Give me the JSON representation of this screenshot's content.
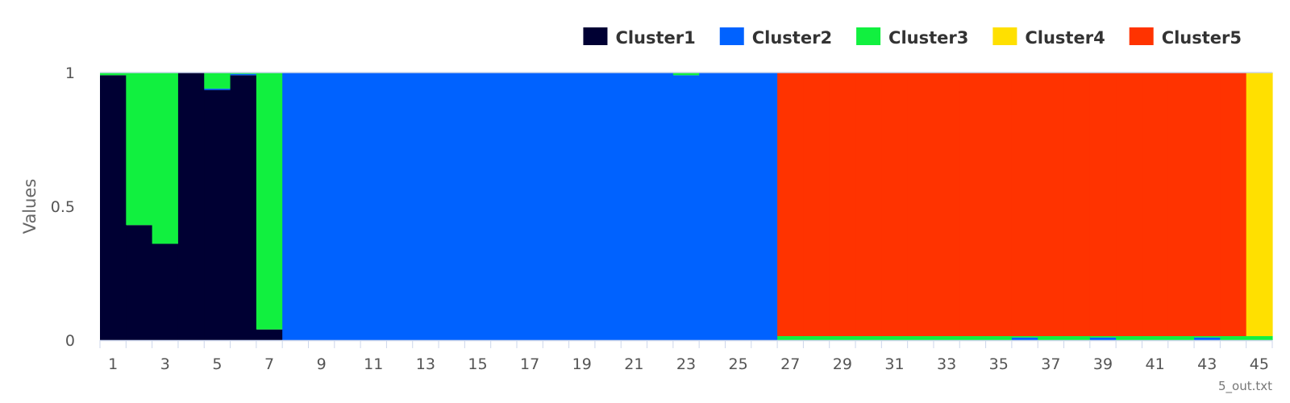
{
  "chart_data": {
    "type": "bar",
    "stacked": true,
    "normalized": true,
    "ylabel": "Values",
    "xlabel": "",
    "ylim": [
      0,
      1
    ],
    "y_ticks": [
      "0",
      "0.5",
      "1"
    ],
    "x_ticks": [
      "1",
      "3",
      "5",
      "7",
      "9",
      "11",
      "13",
      "15",
      "17",
      "19",
      "21",
      "23",
      "25",
      "27",
      "29",
      "31",
      "33",
      "35",
      "37",
      "39",
      "41",
      "43",
      "45"
    ],
    "legend_position": "top-right",
    "grid": false,
    "categories": [
      1,
      2,
      3,
      4,
      5,
      6,
      7,
      8,
      9,
      10,
      11,
      12,
      13,
      14,
      15,
      16,
      17,
      18,
      19,
      20,
      21,
      22,
      23,
      24,
      25,
      26,
      27,
      28,
      29,
      30,
      31,
      32,
      33,
      34,
      35,
      36,
      37,
      38,
      39,
      40,
      41,
      42,
      43,
      44,
      45
    ],
    "series": [
      {
        "name": "Cluster1",
        "color": "#000033",
        "values": [
          0.99,
          0.43,
          0.36,
          1,
          0.935,
          0.99,
          0.04,
          0,
          0,
          0,
          0,
          0,
          0,
          0,
          0,
          0,
          0,
          0,
          0,
          0,
          0,
          0,
          0,
          0,
          0,
          0,
          0,
          0,
          0,
          0,
          0,
          0,
          0,
          0,
          0,
          0,
          0,
          0,
          0,
          0,
          0,
          0,
          0,
          0,
          0
        ]
      },
      {
        "name": "Cluster2",
        "color": "#0062FF",
        "values": [
          0,
          0,
          0,
          0,
          0.005,
          0.005,
          0,
          1,
          1,
          1,
          1,
          1,
          1,
          1,
          1,
          1,
          1,
          1,
          1,
          1,
          1,
          1,
          0.99,
          1,
          1,
          1,
          0,
          0,
          0,
          0,
          0,
          0,
          0,
          0,
          0,
          0.01,
          0,
          0,
          0.01,
          0,
          0,
          0,
          0.01,
          0,
          0
        ]
      },
      {
        "name": "Cluster3",
        "color": "#11F03F",
        "values": [
          0.01,
          0.57,
          0.64,
          0,
          0.06,
          0.005,
          0.96,
          0,
          0,
          0,
          0,
          0,
          0,
          0,
          0,
          0,
          0,
          0,
          0,
          0,
          0,
          0,
          0.01,
          0,
          0,
          0,
          0.015,
          0.015,
          0.015,
          0.015,
          0.015,
          0.015,
          0.015,
          0.015,
          0.015,
          0.005,
          0.015,
          0.015,
          0.005,
          0.015,
          0.015,
          0.015,
          0.005,
          0.015,
          0.015
        ]
      },
      {
        "name": "Cluster4",
        "color": "#FFE000",
        "values": [
          0,
          0,
          0,
          0,
          0,
          0,
          0,
          0,
          0,
          0,
          0,
          0,
          0,
          0,
          0,
          0,
          0,
          0,
          0,
          0,
          0,
          0,
          0,
          0,
          0,
          0,
          0,
          0,
          0,
          0,
          0,
          0,
          0,
          0,
          0,
          0,
          0,
          0,
          0,
          0,
          0,
          0,
          0,
          0,
          0.985
        ]
      },
      {
        "name": "Cluster5",
        "color": "#FF3300",
        "values": [
          0,
          0,
          0,
          0,
          0,
          0,
          0,
          0,
          0,
          0,
          0,
          0,
          0,
          0,
          0,
          0,
          0,
          0,
          0,
          0,
          0,
          0,
          0,
          0,
          0,
          0,
          0.985,
          0.985,
          0.985,
          0.985,
          0.985,
          0.985,
          0.985,
          0.985,
          0.985,
          0.985,
          0.985,
          0.985,
          0.985,
          0.985,
          0.985,
          0.985,
          0.985,
          0.985,
          0
        ]
      }
    ],
    "credit": "5_out.txt"
  }
}
